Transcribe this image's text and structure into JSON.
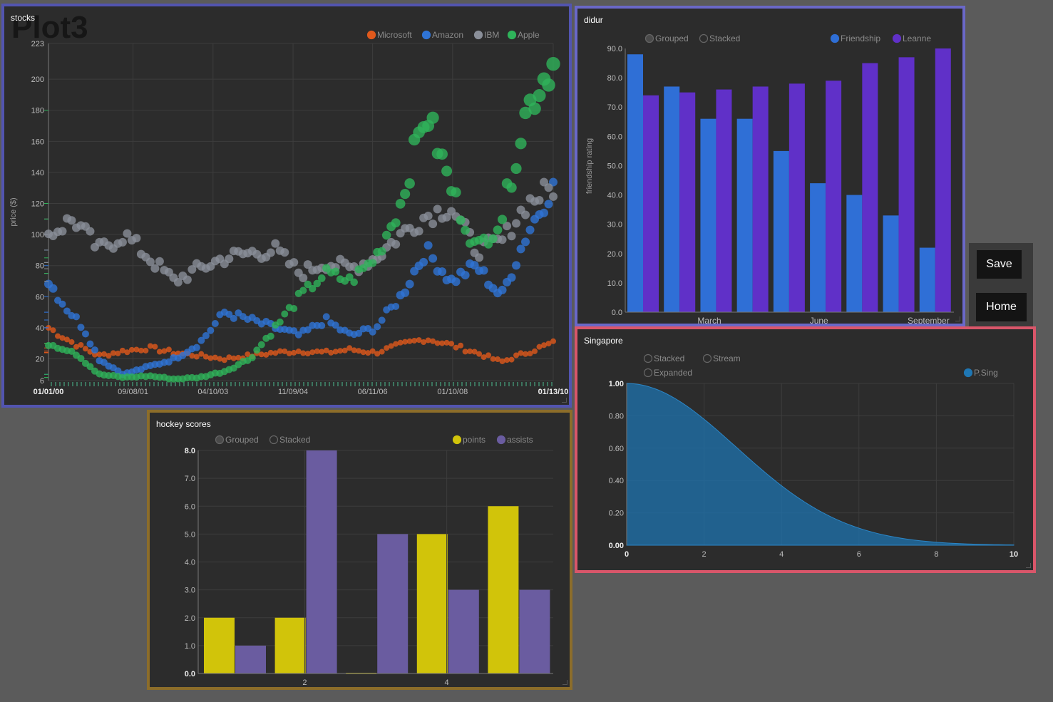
{
  "toolbar": {
    "save_label": "Save",
    "home_label": "Home"
  },
  "stocks": {
    "panel_title": "stocks",
    "plot_title": "Plot3",
    "ylabel": "price ($)",
    "legend": [
      {
        "label": "Microsoft",
        "color": "#e0591c"
      },
      {
        "label": "Amazon",
        "color": "#2f74d6"
      },
      {
        "label": "IBM",
        "color": "#8a8f99"
      },
      {
        "label": "Apple",
        "color": "#2fb35a"
      }
    ],
    "yticks": [
      "223",
      "200",
      "180",
      "160",
      "140",
      "120",
      "100",
      "80",
      "60",
      "40",
      "20",
      "6"
    ],
    "xticks": [
      "01/01/00",
      "09/08/01",
      "04/10/03",
      "11/09/04",
      "06/11/06",
      "01/10/08",
      "01/13/10"
    ]
  },
  "didur": {
    "panel_title": "didur",
    "controls": [
      "Grouped",
      "Stacked"
    ],
    "legend": [
      {
        "label": "Friendship",
        "color": "#2f6fd6"
      },
      {
        "label": "Leanne",
        "color": "#6030c8"
      }
    ],
    "ylabel": "friendship rating",
    "xticks": [
      "March",
      "June",
      "September"
    ]
  },
  "singapore": {
    "panel_title": "Singapore",
    "controls": [
      "Stacked",
      "Stream",
      "Expanded"
    ],
    "legend": [
      {
        "label": "P.Sing",
        "color": "#1f77b4"
      }
    ]
  },
  "hockey": {
    "panel_title": "hockey scores",
    "controls": [
      "Grouped",
      "Stacked"
    ],
    "legend": [
      {
        "label": "points",
        "color": "#d1c40a"
      },
      {
        "label": "assists",
        "color": "#6a5ca0"
      }
    ],
    "xticks": [
      "2",
      "4"
    ]
  },
  "chart_data": [
    {
      "type": "scatter",
      "title": "Plot3",
      "ylabel": "price ($)",
      "ylim": [
        6,
        223
      ],
      "xlim": [
        "01/01/00",
        "01/13/10"
      ],
      "x_ticks": [
        "01/01/00",
        "09/08/01",
        "04/10/03",
        "11/09/04",
        "06/11/06",
        "01/10/08",
        "01/13/10"
      ],
      "y_ticks": [
        6,
        20,
        40,
        60,
        80,
        100,
        120,
        140,
        160,
        180,
        200,
        223
      ],
      "grid": true,
      "legend_position": "top-right",
      "series": [
        {
          "name": "Microsoft",
          "x": [
            2000.0,
            2000.5,
            2001.0,
            2001.5,
            2002.0,
            2002.5,
            2003.0,
            2003.5,
            2004.0,
            2004.5,
            2005.0,
            2005.5,
            2006.0,
            2006.5,
            2007.0,
            2007.5,
            2008.0,
            2008.5,
            2009.0,
            2009.5,
            2010.0
          ],
          "y": [
            40,
            30,
            22,
            25,
            27,
            24,
            22,
            20,
            22,
            24,
            25,
            24,
            26,
            24,
            29,
            33,
            29,
            24,
            18,
            24,
            30
          ]
        },
        {
          "name": "Amazon",
          "x": [
            2000.0,
            2000.3,
            2000.7,
            2001.0,
            2001.5,
            2002.0,
            2002.5,
            2003.0,
            2003.5,
            2004.0,
            2004.5,
            2005.0,
            2005.5,
            2006.0,
            2006.5,
            2007.0,
            2007.5,
            2008.0,
            2008.5,
            2009.0,
            2009.5,
            2010.0
          ],
          "y": [
            70,
            55,
            40,
            20,
            10,
            15,
            20,
            30,
            50,
            45,
            40,
            35,
            45,
            35,
            40,
            60,
            90,
            70,
            80,
            60,
            100,
            130
          ]
        },
        {
          "name": "IBM",
          "x": [
            2000.0,
            2000.5,
            2001.0,
            2001.5,
            2002.0,
            2002.5,
            2003.0,
            2003.5,
            2004.0,
            2004.5,
            2005.0,
            2005.5,
            2006.0,
            2006.5,
            2007.0,
            2007.5,
            2008.0,
            2008.5,
            2009.0,
            2009.5,
            2010.0
          ],
          "y": [
            100,
            110,
            90,
            100,
            85,
            70,
            78,
            85,
            88,
            90,
            75,
            82,
            78,
            85,
            100,
            112,
            118,
            90,
            95,
            120,
            130
          ]
        },
        {
          "name": "Apple",
          "x": [
            2000.0,
            2000.5,
            2001.0,
            2001.5,
            2002.0,
            2002.5,
            2003.0,
            2003.5,
            2004.0,
            2004.5,
            2005.0,
            2005.5,
            2006.0,
            2006.5,
            2007.0,
            2007.5,
            2008.0,
            2008.5,
            2009.0,
            2009.5,
            2010.0
          ],
          "y": [
            30,
            25,
            10,
            8,
            9,
            7,
            8,
            12,
            20,
            40,
            60,
            75,
            70,
            85,
            120,
            180,
            130,
            90,
            110,
            180,
            210
          ]
        }
      ]
    },
    {
      "type": "bar",
      "title": "",
      "ylabel": "friendship rating",
      "ylim": [
        0,
        90
      ],
      "y_ticks": [
        "0.0",
        "10.0",
        "20.0",
        "30.0",
        "40.0",
        "50.0",
        "60.0",
        "70.0",
        "80.0",
        "90.0"
      ],
      "x_ticks": [
        "March",
        "June",
        "September"
      ],
      "legend_position": "top-right",
      "categories": [
        "1",
        "2",
        "3",
        "4",
        "5",
        "6",
        "7",
        "8",
        "9"
      ],
      "series": [
        {
          "name": "Friendship",
          "values": [
            88,
            77,
            66,
            66,
            55,
            44,
            40,
            33,
            22
          ]
        },
        {
          "name": "Leanne",
          "values": [
            74,
            75,
            76,
            77,
            78,
            79,
            85,
            87,
            90
          ]
        }
      ]
    },
    {
      "type": "area",
      "title": "",
      "xlim": [
        0,
        10
      ],
      "ylim": [
        0,
        1
      ],
      "x_ticks": [
        "0",
        "2",
        "4",
        "6",
        "8",
        "10"
      ],
      "y_ticks": [
        "0.00",
        "0.20",
        "0.40",
        "0.60",
        "0.80",
        "1.00"
      ],
      "legend_position": "top-right",
      "series": [
        {
          "name": "P.Sing",
          "x": [
            0,
            0.5,
            1,
            1.5,
            2,
            2.5,
            3,
            3.5,
            4,
            4.5,
            5,
            5.5,
            6,
            6.5,
            7,
            7.5,
            8,
            9,
            10
          ],
          "y": [
            1.0,
            0.995,
            0.98,
            0.95,
            0.89,
            0.8,
            0.68,
            0.54,
            0.4,
            0.27,
            0.17,
            0.1,
            0.05,
            0.025,
            0.01,
            0.004,
            0.0015,
            0.0002,
            0.0
          ]
        }
      ]
    },
    {
      "type": "bar",
      "title": "",
      "ylim": [
        0,
        8
      ],
      "y_ticks": [
        "0.0",
        "1.0",
        "2.0",
        "3.0",
        "4.0",
        "5.0",
        "6.0",
        "7.0",
        "8.0"
      ],
      "x_ticks": [
        "2",
        "4"
      ],
      "legend_position": "top-right",
      "categories": [
        "1",
        "2",
        "3",
        "4",
        "5"
      ],
      "series": [
        {
          "name": "points",
          "values": [
            2,
            2,
            0,
            5,
            6
          ]
        },
        {
          "name": "assists",
          "values": [
            1,
            8,
            5,
            3,
            3
          ]
        }
      ]
    }
  ]
}
